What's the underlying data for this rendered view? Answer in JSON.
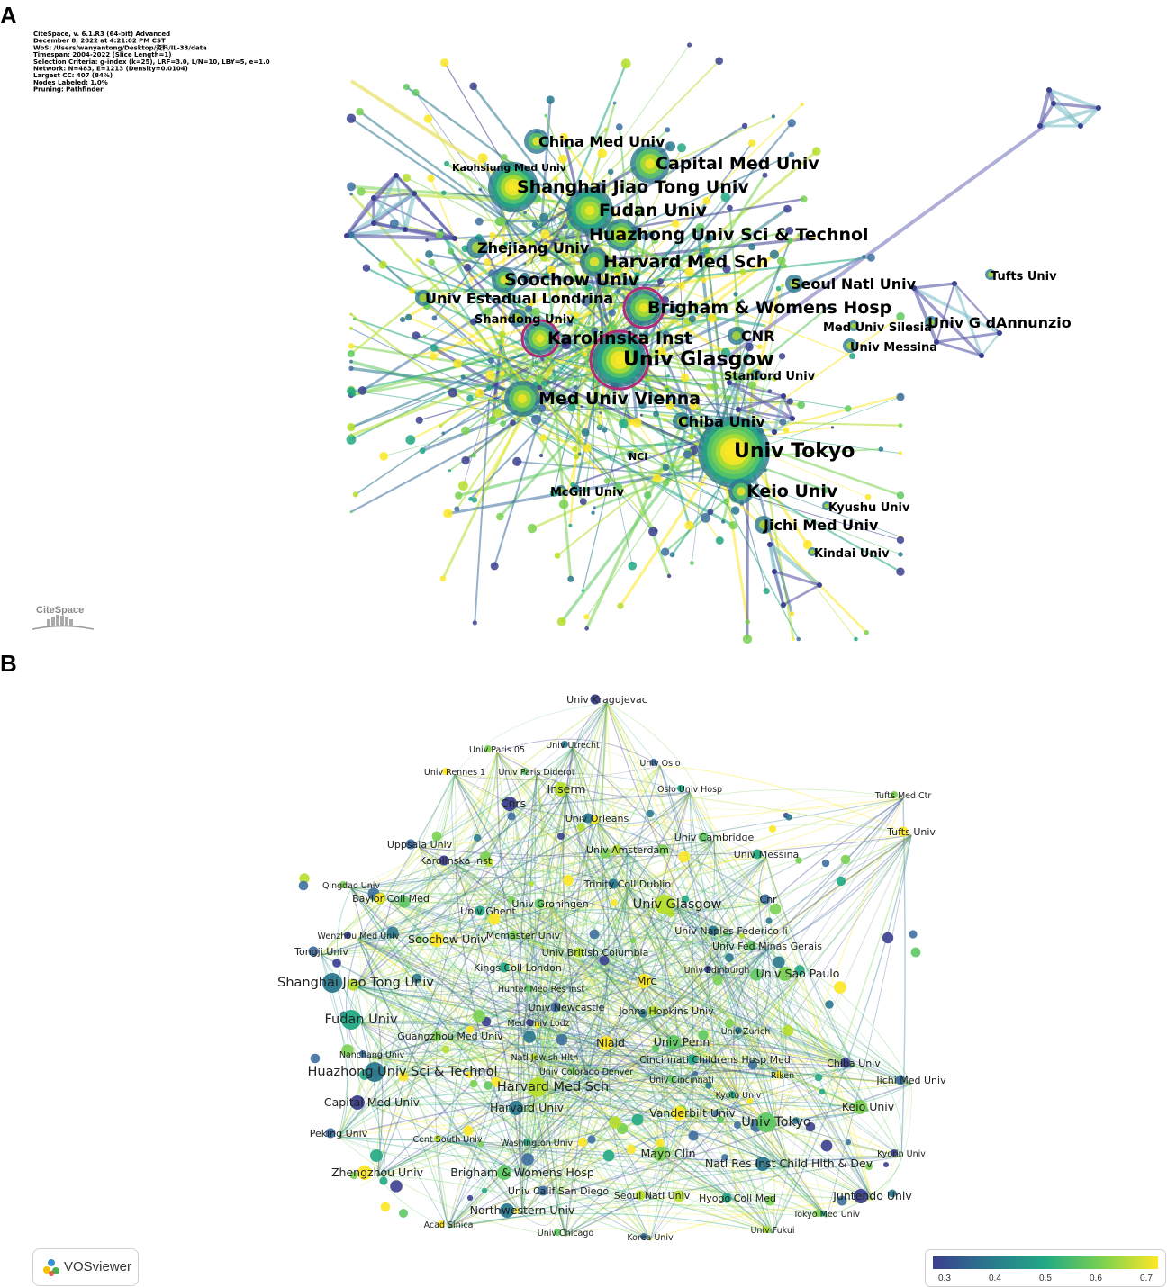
{
  "panelA": {
    "letter": "A",
    "metadata": [
      "CiteSpace, v. 6.1.R3 (64-bit) Advanced",
      "December 8, 2022 at 4:21:02 PM CST",
      "WoS: /Users/wanyantong/Desktop/资料/IL-33/data",
      "Timespan: 2004-2022 (Slice Length=1)",
      "Selection Criteria: g-index (k=25), LRF=3.0, L/N=10, LBY=5, e=1.0",
      "Network: N=483, E=1213 (Density=0.0104)",
      "Largest CC: 407 (84%)",
      "Nodes Labeled: 1.0%",
      "Pruning: Pathfinder"
    ],
    "logo": "CiteSpace",
    "labels": [
      {
        "text": "China Med Univ",
        "size": "large"
      },
      {
        "text": "Kaohsiung Med Univ",
        "size": "small"
      },
      {
        "text": "Capital Med Univ",
        "size": "xlarge"
      },
      {
        "text": "Shanghai Jiao Tong Univ",
        "size": "xlarge"
      },
      {
        "text": "Fudan Univ",
        "size": "xlarge"
      },
      {
        "text": "Huazhong Univ Sci & Technol",
        "size": "xlarge"
      },
      {
        "text": "Zhejiang Univ",
        "size": "large"
      },
      {
        "text": "Harvard Med Sch",
        "size": "xlarge"
      },
      {
        "text": "Soochow Univ",
        "size": "xlarge"
      },
      {
        "text": "Seoul Natl Univ",
        "size": "large"
      },
      {
        "text": "Tufts Univ",
        "size": "medium"
      },
      {
        "text": "Univ Estadual Londrina",
        "size": "large"
      },
      {
        "text": "Brigham & Womens Hosp",
        "size": "xlarge"
      },
      {
        "text": "Shandong Univ",
        "size": "medium"
      },
      {
        "text": "Med Univ Silesia",
        "size": "medium"
      },
      {
        "text": "Univ G dAnnunzio",
        "size": "large"
      },
      {
        "text": "Karolinska Inst",
        "size": "xlarge"
      },
      {
        "text": "CNR",
        "size": "large"
      },
      {
        "text": "Univ Messina",
        "size": "medium"
      },
      {
        "text": "Univ Glasgow",
        "size": "xxlarge"
      },
      {
        "text": "Stanford Univ",
        "size": "medium"
      },
      {
        "text": "Med Univ Vienna",
        "size": "xlarge"
      },
      {
        "text": "Chiba Univ",
        "size": "large"
      },
      {
        "text": "Univ Tokyo",
        "size": "xxlarge"
      },
      {
        "text": "NCI",
        "size": "small"
      },
      {
        "text": "McGill Univ",
        "size": "medium"
      },
      {
        "text": "Keio Univ",
        "size": "xlarge"
      },
      {
        "text": "Kyushu Univ",
        "size": "medium"
      },
      {
        "text": "Jichi Med Univ",
        "size": "large"
      },
      {
        "text": "Kindai Univ",
        "size": "medium"
      }
    ]
  },
  "panelB": {
    "letter": "B",
    "logo": "VOSviewer",
    "colorbar": {
      "ticks": [
        "0.3",
        "0.4",
        "0.5",
        "0.6",
        "0.7"
      ],
      "colors": [
        "#3b3f8f",
        "#2a788e",
        "#22a884",
        "#7ad151",
        "#fde725"
      ]
    },
    "labels": [
      {
        "text": "Univ Kragujevac",
        "size": "s"
      },
      {
        "text": "Univ Paris 05",
        "size": "xs"
      },
      {
        "text": "Univ Utrecht",
        "size": "xs"
      },
      {
        "text": "Univ Rennes 1",
        "size": "xs"
      },
      {
        "text": "Univ Paris Diderot",
        "size": "xs"
      },
      {
        "text": "Univ Oslo",
        "size": "xs"
      },
      {
        "text": "Inserm",
        "size": "m"
      },
      {
        "text": "Oslo Univ Hosp",
        "size": "xs"
      },
      {
        "text": "Cnrs",
        "size": "m"
      },
      {
        "text": "Tufts Med Ctr",
        "size": "xs"
      },
      {
        "text": "Univ Orleans",
        "size": "s"
      },
      {
        "text": "Tufts Univ",
        "size": "s"
      },
      {
        "text": "Univ Cambridge",
        "size": "s"
      },
      {
        "text": "Uppsala Univ",
        "size": "s"
      },
      {
        "text": "Univ Amsterdam",
        "size": "s"
      },
      {
        "text": "Univ Messina",
        "size": "s"
      },
      {
        "text": "Karolinska Inst",
        "size": "s"
      },
      {
        "text": "Qingdao Univ",
        "size": "xs"
      },
      {
        "text": "Trinity Coll Dublin",
        "size": "s"
      },
      {
        "text": "Baylor Coll Med",
        "size": "s"
      },
      {
        "text": "Univ Groningen",
        "size": "s"
      },
      {
        "text": "Cnr",
        "size": "s"
      },
      {
        "text": "Univ Glasgow",
        "size": "l"
      },
      {
        "text": "Univ Ghent",
        "size": "s"
      },
      {
        "text": "Wenzhou Med Univ",
        "size": "xs"
      },
      {
        "text": "Mcmaster Univ",
        "size": "s"
      },
      {
        "text": "Univ Naples Federico Ii",
        "size": "s"
      },
      {
        "text": "Soochow Univ",
        "size": "m"
      },
      {
        "text": "Univ Fed Minas Gerais",
        "size": "s"
      },
      {
        "text": "Tongji Univ",
        "size": "s"
      },
      {
        "text": "Univ British Columbia",
        "size": "s"
      },
      {
        "text": "Kings Coll London",
        "size": "s"
      },
      {
        "text": "Univ Edinburgh",
        "size": "xs"
      },
      {
        "text": "Univ Sao Paulo",
        "size": "m"
      },
      {
        "text": "Shanghai Jiao Tong Univ",
        "size": "l"
      },
      {
        "text": "Mrc",
        "size": "m"
      },
      {
        "text": "Hunter Med Res Inst",
        "size": "xs"
      },
      {
        "text": "Univ Newcastle",
        "size": "s"
      },
      {
        "text": "Johns Hopkins Univ",
        "size": "s"
      },
      {
        "text": "Fudan Univ",
        "size": "l"
      },
      {
        "text": "Med Univ Lodz",
        "size": "xs"
      },
      {
        "text": "Guangzhou Med Univ",
        "size": "s"
      },
      {
        "text": "Univ Zurich",
        "size": "xs"
      },
      {
        "text": "Niaid",
        "size": "m"
      },
      {
        "text": "Univ Penn",
        "size": "m"
      },
      {
        "text": "Nanchang Univ",
        "size": "xs"
      },
      {
        "text": "Natl Jewish Hlth",
        "size": "xs"
      },
      {
        "text": "Cincinnati Childrens Hosp Med",
        "size": "s"
      },
      {
        "text": "Chiba Univ",
        "size": "s"
      },
      {
        "text": "Univ Colorado Denver",
        "size": "xs"
      },
      {
        "text": "Huazhong Univ Sci & Technol",
        "size": "l"
      },
      {
        "text": "Riken",
        "size": "xs"
      },
      {
        "text": "Univ Cincinnati",
        "size": "xs"
      },
      {
        "text": "Jichi Med Univ",
        "size": "s"
      },
      {
        "text": "Harvard Med Sch",
        "size": "l"
      },
      {
        "text": "Kyoto Univ",
        "size": "xs"
      },
      {
        "text": "Capital Med Univ",
        "size": "m"
      },
      {
        "text": "Keio Univ",
        "size": "m"
      },
      {
        "text": "Harvard Univ",
        "size": "m"
      },
      {
        "text": "Vanderbilt Univ",
        "size": "m"
      },
      {
        "text": "Univ Tokyo",
        "size": "l"
      },
      {
        "text": "Peking Univ",
        "size": "s"
      },
      {
        "text": "Cent South Univ",
        "size": "xs"
      },
      {
        "text": "Washington Univ",
        "size": "xs"
      },
      {
        "text": "Kyorin Univ",
        "size": "xs"
      },
      {
        "text": "Mayo Clin",
        "size": "m"
      },
      {
        "text": "Natl Res Inst Child Hlth & Dev",
        "size": "m"
      },
      {
        "text": "Zhengzhou Univ",
        "size": "m"
      },
      {
        "text": "Brigham & Womens Hosp",
        "size": "m"
      },
      {
        "text": "Univ Calif San Diego",
        "size": "s"
      },
      {
        "text": "Seoul Natl Univ",
        "size": "s"
      },
      {
        "text": "Hyogo Coll Med",
        "size": "s"
      },
      {
        "text": "Juntendo Univ",
        "size": "m"
      },
      {
        "text": "Tokyo Med Univ",
        "size": "xs"
      },
      {
        "text": "Northwestern Univ",
        "size": "m"
      },
      {
        "text": "Acad Sinica",
        "size": "xs"
      },
      {
        "text": "Univ Chicago",
        "size": "xs"
      },
      {
        "text": "Korea Univ",
        "size": "xs"
      },
      {
        "text": "Univ Fukui",
        "size": "xs"
      }
    ]
  }
}
